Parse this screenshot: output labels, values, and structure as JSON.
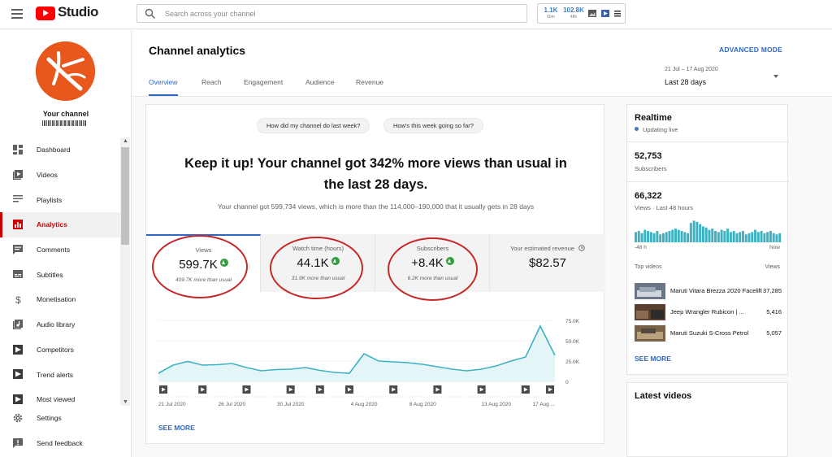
{
  "topbar": {
    "app_name": "Studio",
    "search_placeholder": "Search across your channel",
    "extension": {
      "stat1_value": "1.1K",
      "stat1_sub": "60m",
      "stat2_value": "102.8K",
      "stat2_sub": "48h"
    }
  },
  "sidebar": {
    "channel_label": "Your channel",
    "items": [
      {
        "label": "Dashboard",
        "icon": "dashboard-icon"
      },
      {
        "label": "Videos",
        "icon": "videos-icon"
      },
      {
        "label": "Playlists",
        "icon": "playlists-icon"
      },
      {
        "label": "Analytics",
        "icon": "analytics-icon",
        "active": true
      },
      {
        "label": "Comments",
        "icon": "comments-icon"
      },
      {
        "label": "Subtitles",
        "icon": "subtitles-icon"
      },
      {
        "label": "Monetisation",
        "icon": "dollar-icon"
      },
      {
        "label": "Audio library",
        "icon": "audio-library-icon"
      },
      {
        "label": "Competitors",
        "icon": "competitors-icon"
      },
      {
        "label": "Trend alerts",
        "icon": "trend-alerts-icon"
      },
      {
        "label": "Most viewed",
        "icon": "most-viewed-icon"
      }
    ],
    "bottom_items": [
      {
        "label": "Settings",
        "icon": "gear-icon"
      },
      {
        "label": "Send feedback",
        "icon": "feedback-icon"
      }
    ]
  },
  "header": {
    "title": "Channel analytics",
    "advanced_mode": "ADVANCED MODE",
    "tabs": [
      "Overview",
      "Reach",
      "Engagement",
      "Audience",
      "Revenue"
    ],
    "active_tab": "Overview",
    "date_range": "21 Jul – 17 Aug 2020",
    "date_label": "Last 28 days"
  },
  "overview": {
    "chip1": "How did my channel do last week?",
    "chip2": "How's this week going so far?",
    "headline": "Keep it up! Your channel got 342% more views than usual in the last 28 days.",
    "subline": "Your channel got 599,734 views, which is more than the 114,000–190,000 that it usually gets in 28 days",
    "metrics": [
      {
        "label": "Views",
        "value": "599.7K",
        "note": "409.7K more than usual",
        "trend": "up"
      },
      {
        "label": "Watch time (hours)",
        "value": "44.1K",
        "note": "31.9K more than usual",
        "trend": "up"
      },
      {
        "label": "Subscribers",
        "value": "+8.4K",
        "note": "6.2K more than usual",
        "trend": "up"
      },
      {
        "label": "Your estimated revenue",
        "value": "$82.57",
        "note": "",
        "trend": ""
      }
    ],
    "see_more": "SEE MORE"
  },
  "chart_data": {
    "type": "area",
    "x": [
      "21 Jul",
      "22 Jul",
      "23 Jul",
      "24 Jul",
      "25 Jul",
      "26 Jul",
      "27 Jul",
      "28 Jul",
      "29 Jul",
      "30 Jul",
      "31 Jul",
      "1 Aug",
      "2 Aug",
      "3 Aug",
      "4 Aug",
      "5 Aug",
      "6 Aug",
      "7 Aug",
      "8 Aug",
      "9 Aug",
      "10 Aug",
      "11 Aug",
      "12 Aug",
      "13 Aug",
      "14 Aug",
      "15 Aug",
      "16 Aug",
      "17 Aug"
    ],
    "series": [
      {
        "values": [
          10000,
          20000,
          24500,
          20000,
          20500,
          22000,
          17000,
          13000,
          14500,
          15000,
          17000,
          13500,
          11000,
          10000,
          34000,
          25000,
          24000,
          23000,
          21000,
          18000,
          15000,
          13000,
          15000,
          19000,
          25000,
          30000,
          68000,
          32000
        ]
      }
    ],
    "x_tick_labels": [
      "21 Jul 2020",
      "26 Jul 2020",
      "30 Jul 2020",
      "4 Aug 2020",
      "8 Aug 2020",
      "13 Aug 2020",
      "17 Aug ..."
    ],
    "y_tick_labels": [
      "0",
      "25.0K",
      "50.0K",
      "75.0K"
    ],
    "ylim": [
      0,
      75000
    ],
    "line_color": "#3fb2c2",
    "fill_color": "#e4f5f8",
    "grid": true
  },
  "realtime": {
    "title": "Realtime",
    "live": "Updating live",
    "subscribers_value": "52,753",
    "subscribers_label": "Subscribers",
    "views_value": "66,322",
    "views_label": "Views · Last 48 hours",
    "bars": [
      0.45,
      0.5,
      0.4,
      0.55,
      0.5,
      0.45,
      0.4,
      0.5,
      0.35,
      0.4,
      0.45,
      0.5,
      0.55,
      0.6,
      0.55,
      0.5,
      0.45,
      0.4,
      0.85,
      0.95,
      0.9,
      0.8,
      0.7,
      0.65,
      0.55,
      0.6,
      0.5,
      0.45,
      0.55,
      0.5,
      0.6,
      0.45,
      0.5,
      0.4,
      0.45,
      0.5,
      0.35,
      0.4,
      0.45,
      0.55,
      0.45,
      0.5,
      0.4,
      0.45,
      0.5,
      0.4,
      0.35,
      0.4
    ],
    "axis_start": "-48 h",
    "axis_end": "Now",
    "top_videos_label": "Top videos",
    "views_col_label": "Views",
    "videos": [
      {
        "title": "Maruti Vitara Brezza 2020 Facelift",
        "views": "37,285"
      },
      {
        "title": "Jeep Wrangler Rubicon | ...",
        "views": "5,416"
      },
      {
        "title": "Maruti Suzuki S-Cross Petrol",
        "views": "5,057"
      }
    ],
    "see_more": "SEE MORE"
  },
  "latest_videos": {
    "title": "Latest videos"
  }
}
